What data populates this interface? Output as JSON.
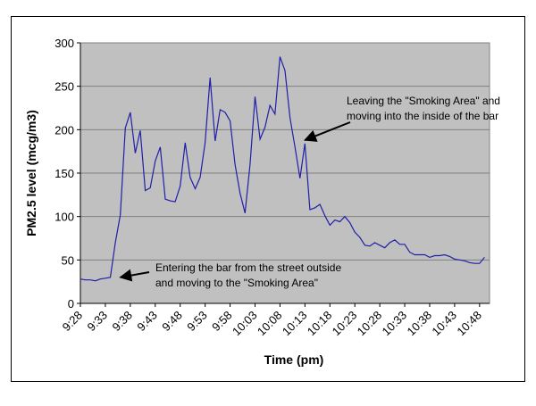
{
  "chart_data": {
    "type": "line",
    "xlabel": "Time (pm)",
    "ylabel": "PM2.5 level (mcg/m3)",
    "ylim": [
      0,
      300
    ],
    "yticks": [
      0,
      50,
      100,
      150,
      200,
      250,
      300
    ],
    "grid": "horizontal",
    "colors": {
      "line": "#1f1fa8",
      "plot_bg": "#c0c0c0",
      "grid": "#808080"
    },
    "x_tick_labels": [
      "9:28",
      "9:33",
      "9:38",
      "9:43",
      "9:48",
      "9:53",
      "9:58",
      "10:03",
      "10:08",
      "10:13",
      "10:18",
      "10:23",
      "10:28",
      "10:33",
      "10:38",
      "10:43",
      "10:48"
    ],
    "x_start": "9:28",
    "x_end": "10:50",
    "series": [
      {
        "values": [
          28,
          27,
          27,
          26,
          28,
          29,
          30,
          70,
          102,
          202,
          220,
          173,
          199,
          130,
          133,
          164,
          180,
          120,
          118,
          117,
          135,
          185,
          145,
          132,
          145,
          185,
          260,
          187,
          223,
          220,
          210,
          160,
          127,
          104,
          160,
          238,
          189,
          203,
          228,
          218,
          284,
          268,
          214,
          180,
          144,
          184,
          108,
          110,
          114,
          101,
          90,
          96,
          94,
          100,
          93,
          82,
          76,
          67,
          66,
          70,
          67,
          64,
          70,
          73,
          68,
          68,
          59,
          56,
          56,
          56,
          53,
          55,
          55,
          56,
          54,
          51,
          50,
          49,
          47,
          46,
          46,
          53
        ]
      }
    ],
    "annotations": [
      {
        "lines": [
          "Leaving the \"Smoking Area\" and",
          "moving into the inside of the bar"
        ],
        "arrow_to": {
          "x": "10:13",
          "y": 188
        }
      },
      {
        "lines": [
          "Entering the bar from the street outside",
          "and moving to the \"Smoking Area\""
        ],
        "arrow_to": {
          "x": "9:36",
          "y": 30
        }
      }
    ]
  }
}
